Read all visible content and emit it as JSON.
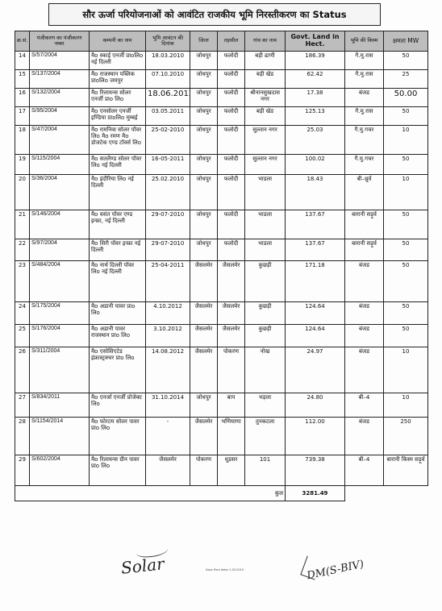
{
  "title": "सौर ऊर्जा परियोजनाओं को आवंटित राजकीय भूमि निरस्तीकरण का Status",
  "headers": {
    "sno": "क्र.सं.",
    "reg": "पंजीकरण का पंजीकरण नम्बर",
    "company": "कम्पनी का नाम",
    "date": "भूमि आवंटन की दिनांक",
    "district": "जिला",
    "tehsil": "तहसील",
    "village": "गांव का नाम",
    "land": "Govt. Land in Hect.",
    "category": "भूमि की किस्म",
    "capacity": "क्षमता MW"
  },
  "rows": [
    {
      "sno": "14",
      "reg": "S/57/2004",
      "company": "मैo स्काई एनर्जी प्राoलिo नई दिल्ली",
      "date": "18.03.2010",
      "district": "जोधपुर",
      "tehsil": "फलोदी",
      "village": "बड़ी ढाणी",
      "land": "186.39",
      "category": "गै.मु.रास",
      "capacity": "50"
    },
    {
      "sno": "15",
      "reg": "S/137/2004",
      "company": "मैo राजस्थान पब्लिक प्राoलिo जयपुर",
      "date": "07.10.2010",
      "district": "जोधपुर",
      "tehsil": "फलोदी",
      "village": "बड़ी खेड",
      "land": "62.42",
      "category": "गै.मु.रास",
      "capacity": "25"
    },
    {
      "sno": "16",
      "reg": "S/132/2004",
      "company": "मैo रिलायन्स सोलर एनर्जी प्राo लिo",
      "date": "18.06.2012",
      "district": "जोधपुर",
      "tehsil": "फलोदी",
      "village": "श्रीनानसुखदास नगर",
      "land": "17.38",
      "category": "बंजड",
      "capacity": "50.00"
    },
    {
      "sno": "17",
      "reg": "S/95/2004",
      "company": "मैo एनसोलर एनर्जी इण्डिया प्राoलिo मुम्बई",
      "date": "03.05.2011",
      "district": "जोधपुर",
      "tehsil": "फलोदी",
      "village": "बड़ी खेड",
      "land": "125.13",
      "category": "गै.मु.रास",
      "capacity": "50"
    },
    {
      "sno": "18",
      "reg": "S/47/2004",
      "company": "मैo रामनिवा सोलर पॉवर लिo मैo रमण मैo डोजटेक एण्ड टॉवर्स लिo",
      "date": "25-02-2010",
      "district": "जोधपुर",
      "tehsil": "फलोदी",
      "village": "सुल्तान नगर",
      "land": "25.03",
      "category": "गै.मु.गचर",
      "capacity": "10"
    },
    {
      "sno": "19",
      "reg": "S/115/2004",
      "company": "मैo सतलैण्ड सोलर पॉवर लिo नई दिल्ली",
      "date": "16-05-2011",
      "district": "जोधपुर",
      "tehsil": "फलोदी",
      "village": "सुल्तान नगर",
      "land": "100.02",
      "category": "गै.मु.गचर",
      "capacity": "50"
    },
    {
      "sno": "20",
      "reg": "S/36/2004",
      "company": "मैo इंदौरिया लिo नई दिल्ली",
      "date": "25.02.2010",
      "district": "जोधपुर",
      "tehsil": "फलोदी",
      "village": "भाडला",
      "land": "18.43",
      "category": "बी–थ्रुर्व",
      "capacity": "10"
    },
    {
      "sno": "21",
      "reg": "S/146/2004",
      "company": "मैo वसंत पॉवर एण्ड इन्फ्रा, नई दिल्ली",
      "date": "29-07-2010",
      "district": "जोधपुर",
      "tehsil": "फलोदी",
      "village": "भाडला",
      "land": "137.67",
      "category": "बारानी सड़ूर्व",
      "capacity": "50"
    },
    {
      "sno": "22",
      "reg": "S/97/2004",
      "company": "मैo सिरी पॉवर इन्फ्रा नई दिल्ली",
      "date": "29-07-2010",
      "district": "जोधपुर",
      "tehsil": "फलोदी",
      "village": "भाडला",
      "land": "137.67",
      "category": "बारानी सड़ूर्व",
      "capacity": "50"
    },
    {
      "sno": "23",
      "reg": "S/484/2004",
      "company": "मैo नार्थ दिल्ली पॉवर लिo नई दिल्ली",
      "date": "25-04-2011",
      "district": "जैसलमेर",
      "tehsil": "जैसलमेर",
      "village": "कुछड़ी",
      "land": "171.18",
      "category": "बंजड",
      "capacity": "50"
    },
    {
      "sno": "24",
      "reg": "S/175/2004",
      "company": "मैo अडानी पावर प्राo लिo",
      "date": "4.10.2012",
      "district": "जैसलमेर",
      "tehsil": "जैसलमेर",
      "village": "कुछड़ी",
      "land": "124.64",
      "category": "बंजड",
      "capacity": "50"
    },
    {
      "sno": "25",
      "reg": "S/176/2004",
      "company": "मैo अडानी पावर राजस्थान प्राo लिo",
      "date": "3.10.2012",
      "district": "जैसलमेर",
      "tehsil": "जैसलमेर",
      "village": "कुछड़ी",
      "land": "124.64",
      "category": "बंजड",
      "capacity": "50"
    },
    {
      "sno": "26",
      "reg": "S/311/2004",
      "company": "मैo एसोसिएटेड इंफ्रास्ट्रक्चर प्राo लिo",
      "date": "14.08.2012",
      "district": "जैसलमेर",
      "tehsil": "पोकरण",
      "village": "नोख",
      "land": "24.97",
      "category": "बंजड",
      "capacity": "10"
    },
    {
      "sno": "27",
      "reg": "S/834/2011",
      "company": "मैo एनर्जा एनर्जी प्रोजेक्ट लिo",
      "date": "31.10.2014",
      "district": "जोधपुर",
      "tehsil": "बाप",
      "village": "भड़ला",
      "land": "24.80",
      "category": "बी–4",
      "capacity": "10"
    },
    {
      "sno": "28",
      "reg": "S/1154/2014",
      "company": "मैo फोरटम सोलर पावर प्राo लिo",
      "date": "-",
      "district": "जैसलमेर",
      "tehsil": "भणियाणा",
      "village": "तुनकटला",
      "land": "112.00",
      "category": "बंजड",
      "capacity": "250"
    },
    {
      "sno": "29",
      "reg": "S/602/2004",
      "company": "मैo रिलायन्स ग्रीन पावर प्राo लिo",
      "date": "जैसलमेर",
      "district": "पोकरण",
      "tehsil": "धूडसर",
      "village": "101",
      "land": "739.38",
      "category": "बी–4",
      "capacity": "बारानी किस्म सड़ूर्व"
    }
  ],
  "total": {
    "label": "कुल",
    "value": "3281.49"
  },
  "signatures": {
    "left": "Solar",
    "right": "DM(S-BIV)"
  },
  "footer_note": "Solar Park letter 1.03.2019"
}
